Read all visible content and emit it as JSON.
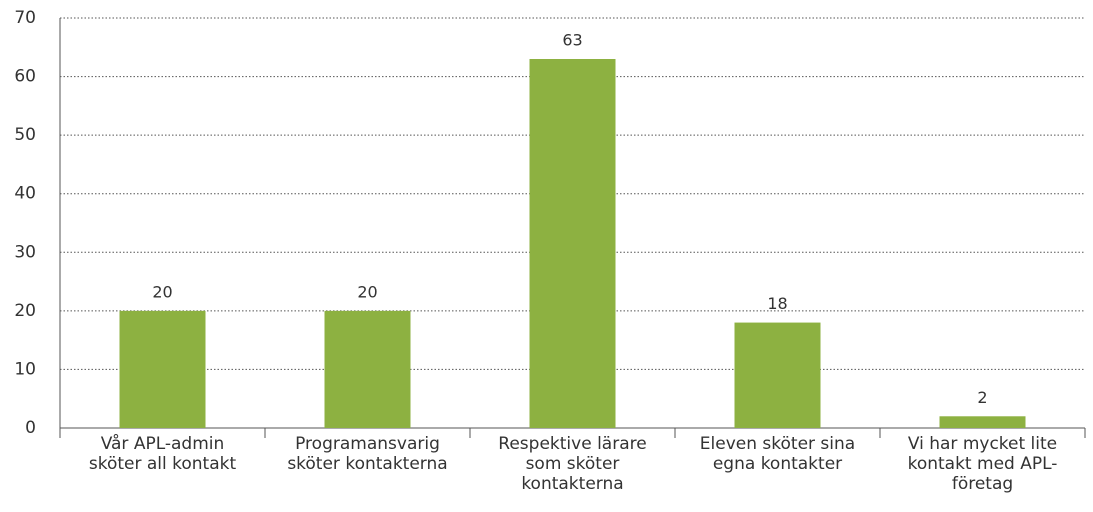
{
  "chart_data": {
    "type": "bar",
    "categories": [
      "Vår APL-admin sköter all kontakt",
      "Programansvarig sköter kontakterna",
      "Respektive lärare som sköter kontakterna",
      "Eleven sköter sina egna kontakter",
      "Vi har mycket lite kontakt med APL-företag"
    ],
    "values": [
      20,
      20,
      63,
      18,
      2
    ],
    "color": "#8db141",
    "ylim": [
      0,
      70
    ],
    "yticks": [
      0,
      10,
      20,
      30,
      40,
      50,
      60,
      70
    ],
    "grid": true
  }
}
